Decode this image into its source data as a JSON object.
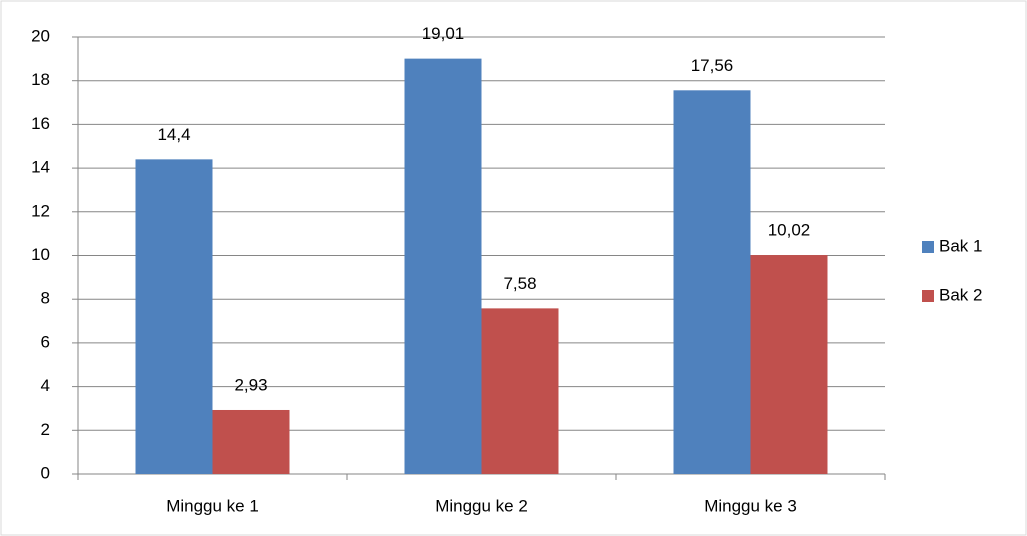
{
  "chart_data": {
    "type": "bar",
    "categories": [
      "Minggu ke 1",
      "Minggu ke 2",
      "Minggu ke 3"
    ],
    "series": [
      {
        "name": "Bak 1",
        "color": "#4f81bd",
        "values": [
          14.4,
          19.01,
          17.56
        ],
        "value_labels": [
          "14,4",
          "19,01",
          "17,56"
        ]
      },
      {
        "name": "Bak 2",
        "color": "#c0504d",
        "values": [
          2.93,
          7.58,
          10.02
        ],
        "value_labels": [
          "2,93",
          "7,58",
          "10,02"
        ]
      }
    ],
    "ylim": [
      0,
      20
    ],
    "yticks": [
      0,
      2,
      4,
      6,
      8,
      10,
      12,
      14,
      16,
      18,
      20
    ],
    "grid": true,
    "legend": "right"
  }
}
